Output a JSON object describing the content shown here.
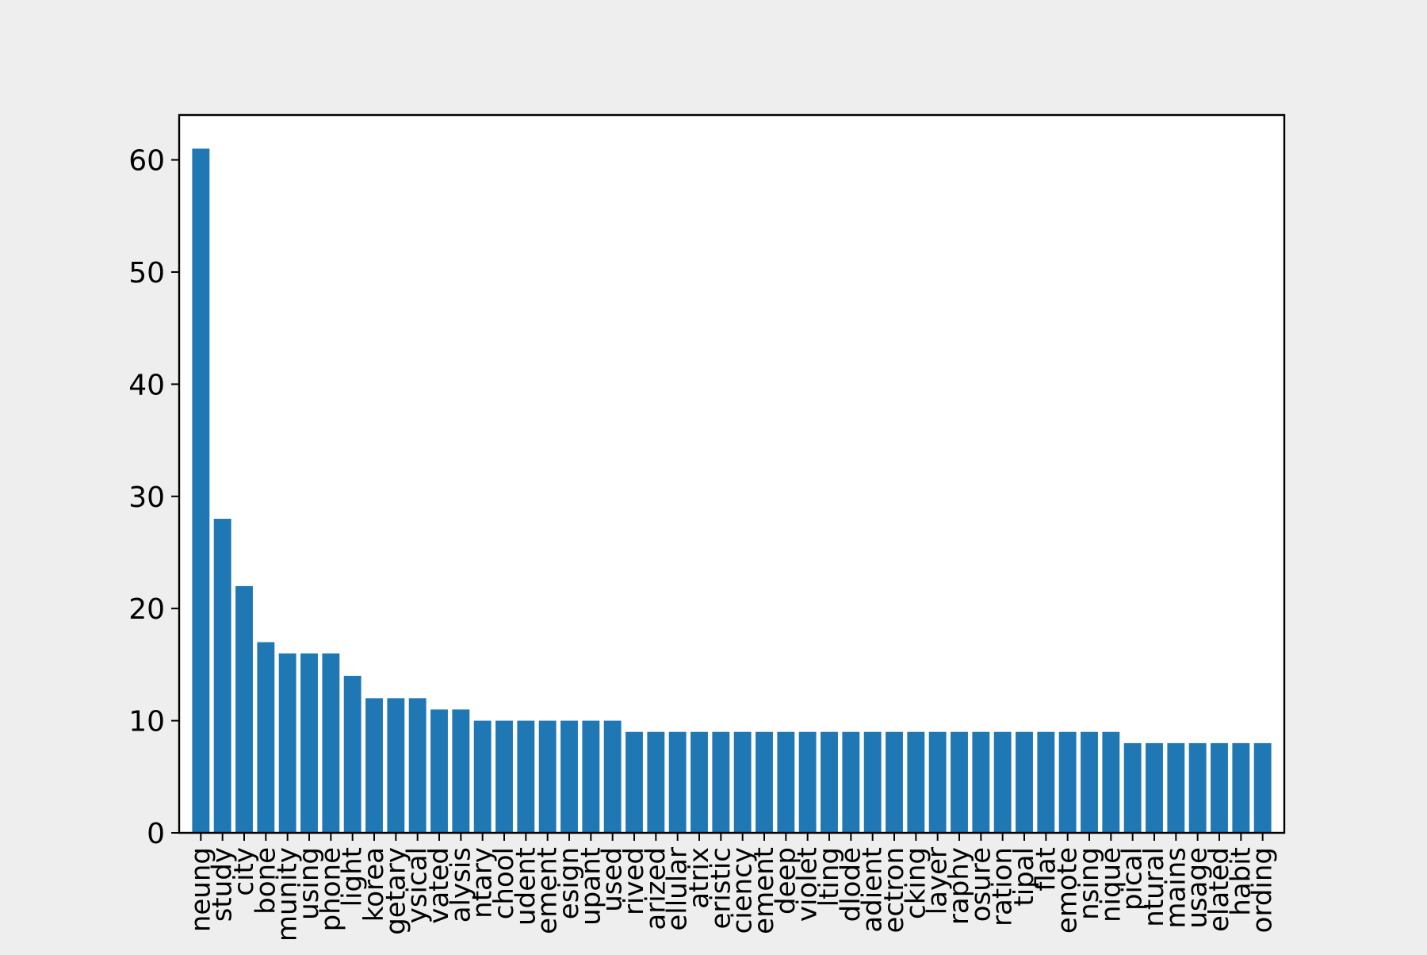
{
  "chart_data": {
    "type": "bar",
    "title": "",
    "xlabel": "",
    "ylabel": "",
    "ylim": [
      0,
      64
    ],
    "yticks": [
      0,
      10,
      20,
      30,
      40,
      50,
      60
    ],
    "grid": false,
    "colors": {
      "bar": "#1f77b4",
      "figure_background": "#eeeeee",
      "plot_background": "#ffffff",
      "axis": "#000000"
    },
    "categories": [
      "neung",
      "study",
      "city",
      "bone",
      "munity",
      "using",
      "phone",
      "light",
      "korea",
      "getary",
      "ysical",
      "vated",
      "alysis",
      "ntary",
      "chool",
      "udent",
      "ement",
      "esign",
      "upant",
      "used",
      "rived",
      "arized",
      "ellular",
      "atrix",
      "eristic",
      "ciency",
      "ement",
      "deep",
      "violet",
      "lting",
      "dlode",
      "adient",
      "ectron",
      "cking",
      "layer",
      "raphy",
      "osure",
      "ration",
      "tipal",
      "flat",
      "emote",
      "nsing",
      "nique",
      "pical",
      "ntural",
      "mains",
      "usage",
      "elated",
      "habit",
      "ording"
    ],
    "values": [
      61,
      28,
      22,
      17,
      16,
      16,
      16,
      14,
      12,
      12,
      12,
      11,
      11,
      10,
      10,
      10,
      10,
      10,
      10,
      10,
      9,
      9,
      9,
      9,
      9,
      9,
      9,
      9,
      9,
      9,
      9,
      9,
      9,
      9,
      9,
      9,
      9,
      9,
      9,
      9,
      9,
      9,
      9,
      8,
      8,
      8,
      8,
      8,
      8,
      8
    ]
  }
}
